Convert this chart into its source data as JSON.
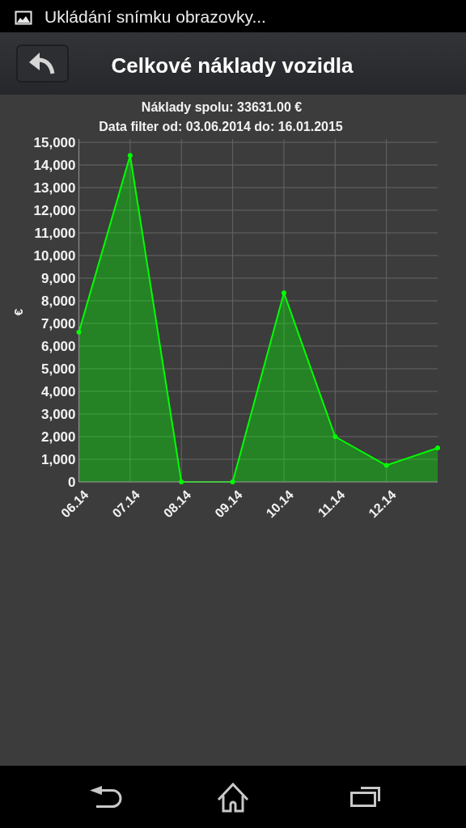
{
  "chart_data": {
    "type": "area",
    "title": "Celkové náklady vozidla",
    "subtitle": "Náklady spolu: 33631.00 €",
    "annotations": [
      "Ukládání snímku obrazovky...",
      "Data filter od: 03.06.2014 do: 16.01.2015"
    ],
    "ylabel": "€",
    "categories": [
      "06.14",
      "07.14",
      "08.14",
      "09.14",
      "10.14",
      "11.14",
      "12.14",
      null
    ],
    "series": [
      {
        "color": "#00ff00",
        "values": [
          6620,
          14420,
          0,
          0,
          8350,
          2000,
          730,
          1500
        ]
      }
    ],
    "ylim": [
      0,
      15000
    ],
    "yticks": [
      0,
      {
        "value": 1000,
        "label": "1,000"
      },
      {
        "value": 2000,
        "label": "2,000"
      },
      {
        "value": 3000,
        "label": "3,000"
      },
      {
        "value": 4000,
        "label": "4,000"
      },
      {
        "value": 5000,
        "label": "5,000"
      },
      {
        "value": 6000,
        "label": "6,000"
      },
      {
        "value": 7000,
        "label": "7,000"
      },
      {
        "value": 8000,
        "label": "8,000"
      },
      {
        "value": 9000,
        "label": "9,000"
      },
      {
        "value": 10000,
        "label": "10,000"
      },
      {
        "value": 11000,
        "label": "11,000"
      },
      {
        "value": 12000,
        "label": "12,000"
      },
      {
        "value": 13000,
        "label": "13,000"
      },
      {
        "value": 14000,
        "label": "14,000"
      },
      {
        "value": 15000,
        "label": "15,000"
      }
    ],
    "grid": true,
    "marker": "circle"
  }
}
